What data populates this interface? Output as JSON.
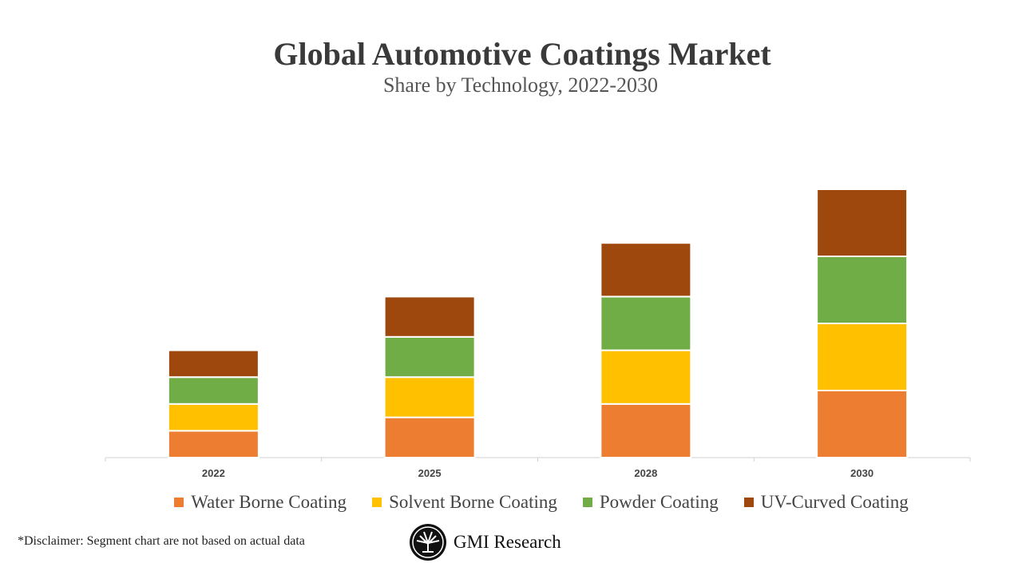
{
  "chart_data": {
    "type": "bar",
    "stacked": true,
    "title": "Global Automotive Coatings Market",
    "subtitle": "Share by Technology, 2022-2030",
    "categories": [
      "2022",
      "2025",
      "2028",
      "2030"
    ],
    "series": [
      {
        "name": "Water Borne Coating",
        "color": "#ED7D31",
        "values": [
          2,
          3,
          4,
          5
        ]
      },
      {
        "name": "Solvent Borne Coating",
        "color": "#FFC000",
        "values": [
          2,
          3,
          4,
          5
        ]
      },
      {
        "name": "Powder Coating",
        "color": "#70AD47",
        "values": [
          2,
          3,
          4,
          5
        ]
      },
      {
        "name": "UV-Curved Coating",
        "color": "#9E480E",
        "values": [
          2,
          3,
          4,
          5
        ]
      }
    ],
    "ylim": [
      0,
      20
    ],
    "y_axis_visible": false,
    "grid": false,
    "legend_position": "bottom"
  },
  "disclaimer": "*Disclaimer:  Segment chart are not based on actual data",
  "logo_text": "GMI Research"
}
